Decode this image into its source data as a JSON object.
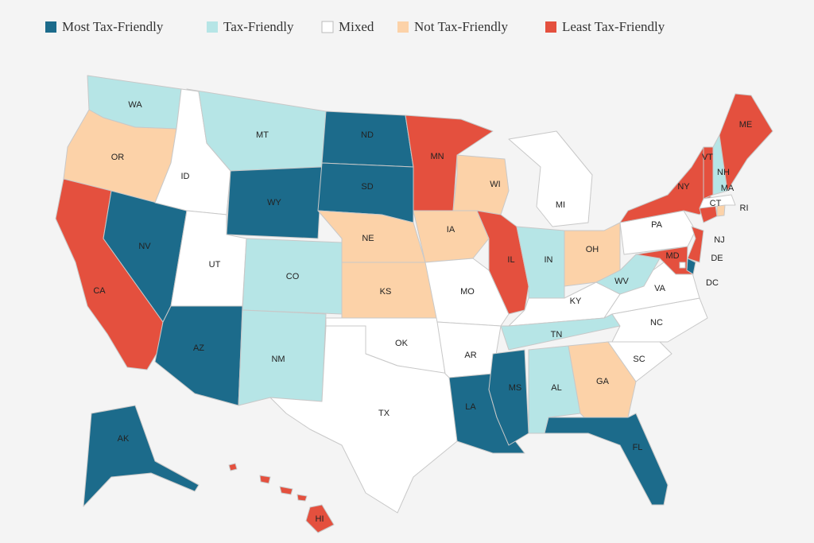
{
  "legend": [
    {
      "label": "Most Tax-Friendly",
      "color": "#1c6b8b"
    },
    {
      "label": "Tax-Friendly",
      "color": "#b6e5e6"
    },
    {
      "label": "Mixed",
      "color": "#ffffff"
    },
    {
      "label": "Not Tax-Friendly",
      "color": "#fcd2a8"
    },
    {
      "label": "Least Tax-Friendly",
      "color": "#e4503e"
    }
  ],
  "states": [
    {
      "label": "WA",
      "category": 1
    },
    {
      "label": "OR",
      "category": 3
    },
    {
      "label": "CA",
      "category": 4
    },
    {
      "label": "NV",
      "category": 0
    },
    {
      "label": "ID",
      "category": 2
    },
    {
      "label": "MT",
      "category": 1
    },
    {
      "label": "WY",
      "category": 0
    },
    {
      "label": "UT",
      "category": 2
    },
    {
      "label": "AZ",
      "category": 0
    },
    {
      "label": "CO",
      "category": 1
    },
    {
      "label": "NM",
      "category": 1
    },
    {
      "label": "ND",
      "category": 0
    },
    {
      "label": "SD",
      "category": 0
    },
    {
      "label": "NE",
      "category": 3
    },
    {
      "label": "KS",
      "category": 3
    },
    {
      "label": "OK",
      "category": 2
    },
    {
      "label": "TX",
      "category": 2
    },
    {
      "label": "MN",
      "category": 4
    },
    {
      "label": "IA",
      "category": 3
    },
    {
      "label": "MO",
      "category": 2
    },
    {
      "label": "AR",
      "category": 2
    },
    {
      "label": "LA",
      "category": 0
    },
    {
      "label": "WI",
      "category": 3
    },
    {
      "label": "IL",
      "category": 4
    },
    {
      "label": "MI",
      "category": 2
    },
    {
      "label": "IN",
      "category": 1
    },
    {
      "label": "OH",
      "category": 3
    },
    {
      "label": "KY",
      "category": 2
    },
    {
      "label": "TN",
      "category": 1
    },
    {
      "label": "MS",
      "category": 0
    },
    {
      "label": "AL",
      "category": 1
    },
    {
      "label": "GA",
      "category": 3
    },
    {
      "label": "FL",
      "category": 0
    },
    {
      "label": "SC",
      "category": 2
    },
    {
      "label": "NC",
      "category": 2
    },
    {
      "label": "VA",
      "category": 2
    },
    {
      "label": "WV",
      "category": 1
    },
    {
      "label": "PA",
      "category": 2
    },
    {
      "label": "NY",
      "category": 4
    },
    {
      "label": "NJ",
      "category": 4
    },
    {
      "label": "DE",
      "category": 0
    },
    {
      "label": "MD",
      "category": 4
    },
    {
      "label": "DC",
      "category": 2
    },
    {
      "label": "CT",
      "category": 4
    },
    {
      "label": "RI",
      "category": 3
    },
    {
      "label": "MA",
      "category": 2
    },
    {
      "label": "VT",
      "category": 4
    },
    {
      "label": "NH",
      "category": 1
    },
    {
      "label": "ME",
      "category": 4
    },
    {
      "label": "AK",
      "category": 0
    },
    {
      "label": "HI",
      "category": 4
    }
  ]
}
